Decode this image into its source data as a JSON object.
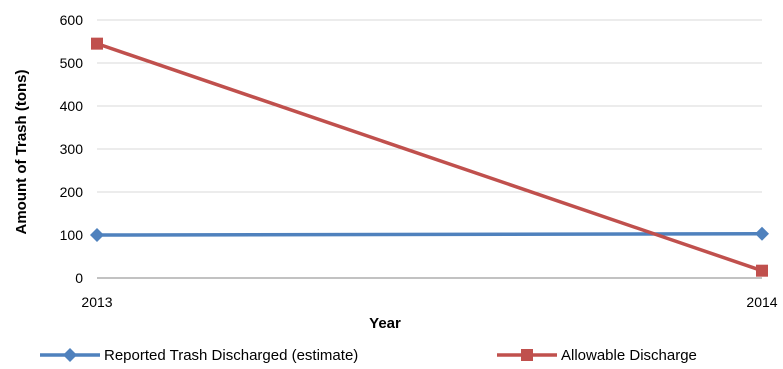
{
  "chart_data": {
    "type": "line",
    "title": "",
    "xlabel": "Year",
    "ylabel": "Amount of Trash  (tons)",
    "x": [
      "2013",
      "2014"
    ],
    "ylim": [
      0,
      600
    ],
    "yticks": [
      0,
      100,
      200,
      300,
      400,
      500,
      600
    ],
    "grid": true,
    "legend_position": "bottom",
    "series": [
      {
        "name": "Reported Trash Discharged (estimate)",
        "values": [
          100,
          103
        ],
        "color": "#4f81bd",
        "marker": "diamond"
      },
      {
        "name": "Allowable Discharge",
        "values": [
          545,
          17
        ],
        "color": "#c0504d",
        "marker": "square"
      }
    ]
  }
}
